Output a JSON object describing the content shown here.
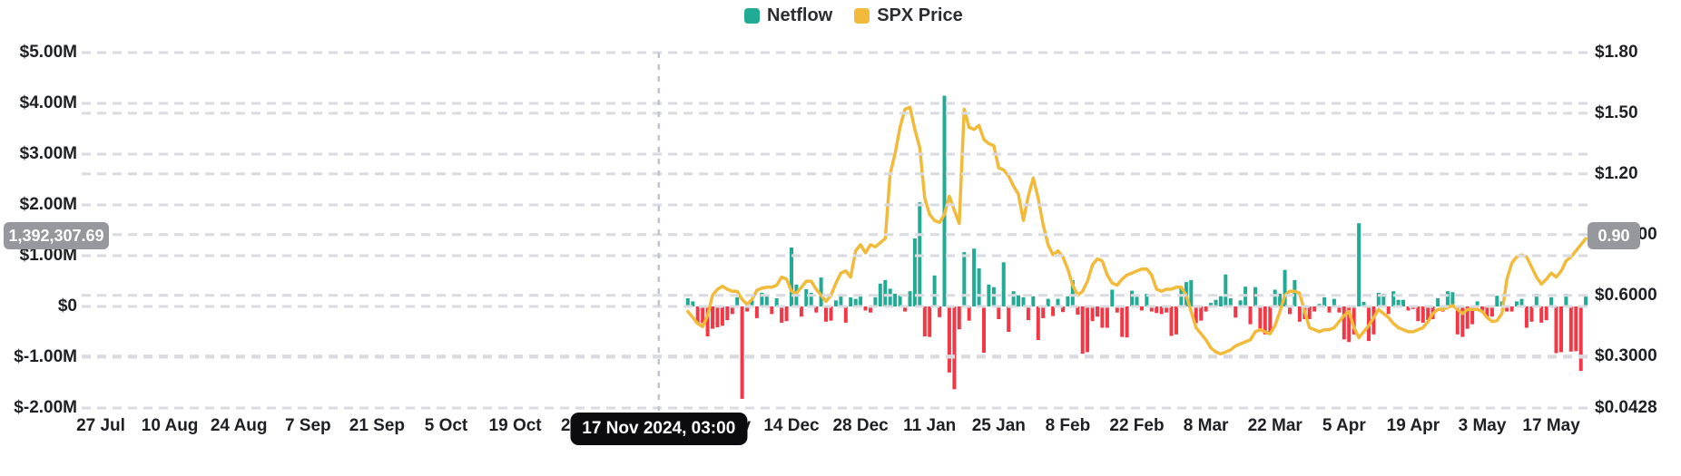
{
  "legend": {
    "items": [
      {
        "label": "Netflow",
        "color": "#22ab94"
      },
      {
        "label": "SPX Price",
        "color": "#f2ba3a"
      }
    ]
  },
  "tooltip": {
    "date_label": "17 Nov 2024, 03:00"
  },
  "axis_badges": {
    "left_value": "1,392,307.69",
    "right_value": "0.90"
  },
  "chart_data": {
    "type": "bar+line",
    "legend": [
      "Netflow",
      "SPX Price"
    ],
    "grid": {
      "style": "dashed",
      "on": true
    },
    "x_axis": {
      "tick_labels": [
        "27 Jul",
        "10 Aug",
        "24 Aug",
        "7 Sep",
        "21 Sep",
        "5 Oct",
        "19 Oct",
        "2 Nov",
        "16 Nov",
        "30 Nov",
        "14 Dec",
        "28 Dec",
        "11 Jan",
        "25 Jan",
        "8 Feb",
        "22 Feb",
        "8 Mar",
        "22 Mar",
        "5 Apr",
        "19 Apr",
        "3 May",
        "17 May"
      ],
      "tick_interval_days": 14
    },
    "left_axis": {
      "tick_labels": [
        "$5.00M",
        "$4.00M",
        "$3.00M",
        "$2.00M",
        "$1.00M",
        "$0",
        "$-1.00M",
        "$-2.00M"
      ],
      "tick_values_musd": [
        5,
        4,
        3,
        2,
        1,
        0,
        -1,
        -2
      ],
      "range_musd": [
        -2,
        5
      ]
    },
    "right_axis": {
      "tick_labels": [
        "$1.80",
        "$1.50",
        "$1.20",
        "$0.9000",
        "$0.6000",
        "$0.3000",
        "$0.0428"
      ],
      "tick_values_usd": [
        1.8,
        1.5,
        1.2,
        0.9,
        0.6,
        0.3,
        0.0428
      ],
      "range_usd": [
        0.0428,
        1.8
      ]
    },
    "crosshair": {
      "date_label": "17 Nov 2024, 03:00",
      "left_axis_value": "1,392,307.69",
      "right_axis_value": "0.90",
      "left_value_musd": 1.3923,
      "days_from_x_start": 113.1
    },
    "series": [
      {
        "name": "Netflow",
        "axis": "left",
        "kind": "bar",
        "unit": "USD millions",
        "color_positive": "#22ab94",
        "color_negative": "#f23846",
        "start_date": "2024-11-23",
        "interval_days": 1,
        "days_from_x_start": 119,
        "values": [
          0.16,
          0.1,
          -0.35,
          -0.33,
          -0.59,
          -0.44,
          -0.41,
          -0.38,
          -0.27,
          -0.15,
          0.18,
          -1.82,
          -0.1,
          0.12,
          -0.23,
          0.27,
          0.21,
          -0.15,
          0.16,
          -0.32,
          -0.29,
          1.16,
          0.43,
          -0.2,
          0.34,
          0.27,
          -0.12,
          0.57,
          -0.3,
          -0.28,
          0.12,
          0.21,
          -0.32,
          0.18,
          0.15,
          0.2,
          -0.08,
          -0.12,
          0.18,
          0.45,
          0.52,
          0.35,
          0.25,
          0.22,
          -0.1,
          0.3,
          1.34,
          2.05,
          -0.59,
          -0.6,
          0.61,
          -0.21,
          4.15,
          -1.3,
          -1.63,
          -0.45,
          1.07,
          -0.28,
          1.14,
          0.75,
          -0.91,
          0.43,
          0.38,
          -0.25,
          0.87,
          -0.5,
          0.3,
          0.22,
          0.18,
          -0.27,
          0.2,
          -0.66,
          -0.23,
          0.15,
          -0.19,
          0.15,
          -0.11,
          0.2,
          0.52,
          -0.16,
          -0.93,
          -0.9,
          -0.29,
          -0.2,
          -0.42,
          -0.42,
          0.33,
          -0.12,
          -0.6,
          -0.61,
          0.31,
          0.19,
          -0.08,
          0.25,
          -0.1,
          -0.13,
          -0.15,
          -0.12,
          -0.58,
          -0.55,
          0.39,
          0.48,
          0.52,
          -0.33,
          -0.28,
          -0.1,
          0.07,
          0.13,
          0.2,
          0.63,
          0.16,
          -0.22,
          0.12,
          0.39,
          -0.35,
          0.38,
          -0.45,
          -0.55,
          -0.5,
          0.33,
          0.25,
          0.72,
          -0.15,
          0.52,
          -0.3,
          -0.25,
          -0.25,
          -0.1,
          0.05,
          0.18,
          -0.12,
          0.15,
          -0.12,
          -0.65,
          -0.7,
          -0.55,
          1.64,
          0.09,
          -0.68,
          -0.55,
          0.27,
          0.25,
          -0.15,
          0.3,
          0.13,
          0.13,
          -0.08,
          -0.05,
          -0.29,
          -0.32,
          -0.27,
          -0.25,
          0.16,
          -0.1,
          0.3,
          0.28,
          -0.55,
          -0.6,
          -0.44,
          -0.35,
          0.1,
          -0.12,
          -0.23,
          -0.2,
          0.21,
          0.1,
          -0.1,
          -0.1,
          0.1,
          0.15,
          -0.42,
          -0.3,
          0.25,
          -0.32,
          -0.27,
          0.18,
          -0.92,
          -0.9,
          0.25,
          -0.89,
          -0.88,
          -1.27,
          0.21
        ]
      },
      {
        "name": "SPX Price",
        "axis": "right",
        "kind": "line",
        "unit": "USD",
        "color": "#f2ba3a",
        "start_date": "2024-11-23",
        "interval_days": 1,
        "days_from_x_start": 119,
        "values": [
          0.52,
          0.49,
          0.46,
          0.445,
          0.5,
          0.6,
          0.63,
          0.645,
          0.63,
          0.62,
          0.62,
          0.58,
          0.555,
          0.58,
          0.625,
          0.635,
          0.64,
          0.64,
          0.65,
          0.69,
          0.68,
          0.62,
          0.61,
          0.64,
          0.67,
          0.67,
          0.63,
          0.6,
          0.57,
          0.6,
          0.66,
          0.71,
          0.72,
          0.69,
          0.82,
          0.85,
          0.81,
          0.85,
          0.84,
          0.86,
          0.88,
          1.2,
          1.3,
          1.43,
          1.52,
          1.53,
          1.42,
          1.33,
          1.08,
          1.0,
          0.97,
          0.96,
          1.0,
          1.09,
          1.02,
          0.955,
          1.52,
          1.43,
          1.42,
          1.44,
          1.37,
          1.35,
          1.34,
          1.23,
          1.22,
          1.19,
          1.14,
          1.1,
          0.97,
          1.09,
          1.18,
          1.08,
          0.95,
          0.85,
          0.8,
          0.82,
          0.79,
          0.73,
          0.65,
          0.6,
          0.62,
          0.67,
          0.75,
          0.78,
          0.77,
          0.7,
          0.66,
          0.65,
          0.68,
          0.7,
          0.71,
          0.72,
          0.73,
          0.73,
          0.7,
          0.63,
          0.62,
          0.63,
          0.63,
          0.64,
          0.64,
          0.6,
          0.52,
          0.44,
          0.41,
          0.38,
          0.34,
          0.32,
          0.31,
          0.32,
          0.33,
          0.35,
          0.36,
          0.37,
          0.38,
          0.42,
          0.43,
          0.42,
          0.41,
          0.45,
          0.52,
          0.6,
          0.62,
          0.62,
          0.61,
          0.52,
          0.44,
          0.43,
          0.42,
          0.43,
          0.43,
          0.44,
          0.47,
          0.5,
          0.52,
          0.44,
          0.39,
          0.42,
          0.45,
          0.49,
          0.53,
          0.51,
          0.49,
          0.46,
          0.44,
          0.43,
          0.42,
          0.42,
          0.43,
          0.44,
          0.47,
          0.51,
          0.53,
          0.53,
          0.54,
          0.55,
          0.53,
          0.51,
          0.53,
          0.53,
          0.53,
          0.52,
          0.49,
          0.47,
          0.475,
          0.51,
          0.68,
          0.76,
          0.79,
          0.8,
          0.79,
          0.74,
          0.69,
          0.655,
          0.68,
          0.71,
          0.69,
          0.72,
          0.77,
          0.79,
          0.82,
          0.85,
          0.88
        ]
      }
    ]
  }
}
